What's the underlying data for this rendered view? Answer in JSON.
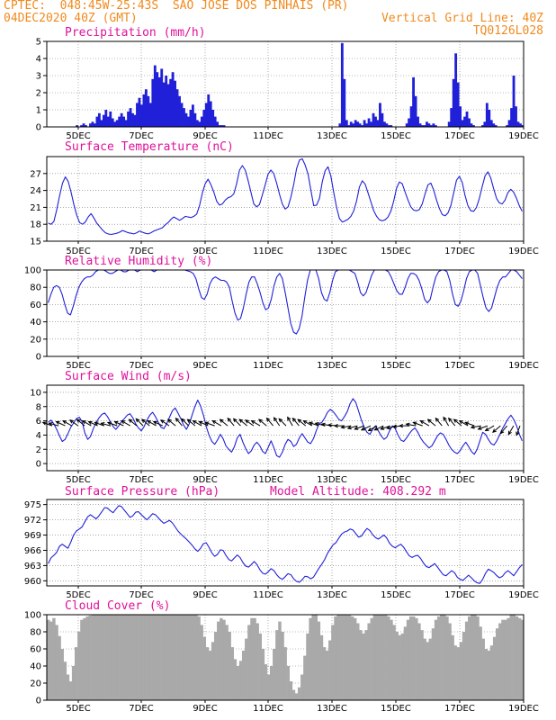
{
  "header": {
    "station": "CPTEC:  048:45W-25:43S  SAO JOSE DOS PINHAIS (PR)",
    "run": "04DEC2020 40Z (GMT)",
    "grid_note": "Vertical Grid Line: 40Z",
    "code": "TQ0126L028"
  },
  "colors": {
    "header": "#f08a1e",
    "title": "#e0129a",
    "series": "#2020d8",
    "cloud": "#a9a9a9"
  },
  "chart_data": [
    {
      "type": "bar",
      "title": "Precipitation (mm/h)",
      "x_ticks": [
        "5DEC",
        "7DEC",
        "9DEC",
        "11DEC",
        "13DEC",
        "15DEC",
        "17DEC",
        "19DEC"
      ],
      "ylim": [
        0,
        5
      ],
      "y_ticks": [
        0,
        1,
        2,
        3,
        4,
        5
      ],
      "grid": "dotted",
      "values": [
        0,
        0,
        0,
        0,
        0,
        0,
        0,
        0,
        0,
        0,
        0,
        0,
        0,
        0.1,
        0,
        0.1,
        0.2,
        0.1,
        0,
        0.2,
        0.3,
        0.2,
        0.6,
        0.8,
        0.4,
        0.7,
        1.0,
        0.6,
        0.9,
        0.5,
        0.3,
        0.4,
        0.6,
        0.8,
        0.6,
        0.4,
        0.9,
        1.1,
        0.8,
        0.7,
        1.4,
        1.7,
        1.3,
        1.9,
        2.2,
        1.8,
        1.4,
        2.8,
        3.6,
        3.2,
        2.9,
        3.4,
        2.6,
        3.0,
        2.5,
        2.8,
        3.2,
        2.7,
        2.2,
        1.8,
        1.4,
        1.1,
        0.8,
        0.6,
        1.0,
        1.3,
        0.8,
        0.4,
        0.3,
        0.6,
        1.0,
        1.4,
        1.9,
        1.5,
        1.0,
        0.6,
        0.3,
        0.1,
        0.1,
        0.1,
        0,
        0,
        0,
        0,
        0,
        0,
        0,
        0,
        0,
        0,
        0,
        0,
        0,
        0,
        0,
        0,
        0,
        0,
        0,
        0,
        0,
        0,
        0,
        0,
        0,
        0,
        0,
        0,
        0,
        0,
        0,
        0,
        0,
        0,
        0,
        0,
        0,
        0,
        0,
        0,
        0,
        0,
        0,
        0,
        0,
        0,
        0,
        0,
        0,
        0,
        0,
        0.2,
        4.9,
        2.8,
        0.4,
        0.1,
        0.3,
        0.2,
        0.4,
        0.3,
        0.2,
        0.1,
        0.4,
        0.2,
        0.5,
        0.3,
        0.8,
        0.6,
        0.4,
        1.4,
        0.8,
        0.3,
        0.2,
        0.1,
        0.1,
        0,
        0,
        0,
        0,
        0,
        0,
        0.2,
        0.5,
        1.2,
        2.9,
        1.8,
        0.6,
        0.2,
        0.1,
        0.1,
        0.3,
        0.2,
        0.1,
        0.2,
        0.1,
        0,
        0,
        0,
        0,
        0,
        0.3,
        1.1,
        2.8,
        4.3,
        2.6,
        1.2,
        0.4,
        0.6,
        0.9,
        0.5,
        0.2,
        0.1,
        0,
        0,
        0,
        0.1,
        0.3,
        1.4,
        1.0,
        0.4,
        0.2,
        0.1,
        0,
        0,
        0,
        0,
        0.1,
        0.4,
        1.1,
        3.0,
        1.2,
        0.3,
        0.2,
        0.1
      ]
    },
    {
      "type": "line",
      "title": "Surface Temperature (nC)",
      "x_ticks": [
        "5DEC",
        "7DEC",
        "9DEC",
        "11DEC",
        "13DEC",
        "15DEC",
        "17DEC",
        "19DEC"
      ],
      "ylim": [
        15,
        30
      ],
      "y_ticks": [
        15,
        18,
        21,
        24,
        27
      ],
      "grid": "dotted",
      "values": [
        18.2,
        18.0,
        18.5,
        20.6,
        23.1,
        25.3,
        26.4,
        25.6,
        23.7,
        21.5,
        19.6,
        18.3,
        18.0,
        18.4,
        19.3,
        19.9,
        19.1,
        18.2,
        17.6,
        17.0,
        16.5,
        16.3,
        16.2,
        16.3,
        16.4,
        16.6,
        16.9,
        16.7,
        16.5,
        16.4,
        16.3,
        16.5,
        16.8,
        16.6,
        16.4,
        16.3,
        16.5,
        16.8,
        17.0,
        17.2,
        17.4,
        17.9,
        18.3,
        18.9,
        19.3,
        19.0,
        18.7,
        19.0,
        19.4,
        19.3,
        19.2,
        19.4,
        19.8,
        21.3,
        23.6,
        25.2,
        26.0,
        25.0,
        23.7,
        22.1,
        21.4,
        21.6,
        22.3,
        22.7,
        22.9,
        23.4,
        25.2,
        27.6,
        28.4,
        27.6,
        25.8,
        23.7,
        21.6,
        21.1,
        21.5,
        23.2,
        25.0,
        26.9,
        27.6,
        27.0,
        25.3,
        23.3,
        21.6,
        20.7,
        21.1,
        22.8,
        25.1,
        27.9,
        29.4,
        29.6,
        28.5,
        26.9,
        24.0,
        21.3,
        21.4,
        22.6,
        25.6,
        27.5,
        28.2,
        26.5,
        23.6,
        21.0,
        19.0,
        18.4,
        18.6,
        18.9,
        19.4,
        20.4,
        22.1,
        24.6,
        25.7,
        25.1,
        23.6,
        22.0,
        20.4,
        19.4,
        18.8,
        18.6,
        18.8,
        19.3,
        20.3,
        22.1,
        24.4,
        25.5,
        25.2,
        23.7,
        22.3,
        21.1,
        20.5,
        20.4,
        20.6,
        21.6,
        23.4,
        25.0,
        25.3,
        24.1,
        22.3,
        20.8,
        19.7,
        19.5,
        20.0,
        21.3,
        23.5,
        25.8,
        26.5,
        25.4,
        23.1,
        21.3,
        20.4,
        20.3,
        21.0,
        22.6,
        24.7,
        26.6,
        27.3,
        26.2,
        24.3,
        22.6,
        21.8,
        21.6,
        22.3,
        23.6,
        24.2,
        23.7,
        22.6,
        21.3,
        20.3
      ]
    },
    {
      "type": "line",
      "title": "Relative Humidity (%)",
      "x_ticks": [
        "5DEC",
        "7DEC",
        "9DEC",
        "11DEC",
        "13DEC",
        "15DEC",
        "17DEC",
        "19DEC"
      ],
      "ylim": [
        0,
        100
      ],
      "y_ticks": [
        0,
        20,
        40,
        60,
        80,
        100
      ],
      "grid": "dotted",
      "values": [
        62,
        72,
        80,
        82,
        80,
        72,
        60,
        50,
        48,
        58,
        70,
        80,
        86,
        90,
        92,
        92,
        94,
        98,
        100,
        100,
        100,
        98,
        96,
        96,
        98,
        100,
        100,
        98,
        98,
        100,
        100,
        100,
        98,
        100,
        100,
        100,
        100,
        100,
        98,
        100,
        100,
        100,
        100,
        100,
        100,
        100,
        100,
        100,
        100,
        100,
        99,
        98,
        96,
        90,
        78,
        68,
        66,
        72,
        84,
        90,
        92,
        90,
        88,
        88,
        86,
        80,
        64,
        50,
        42,
        44,
        56,
        72,
        86,
        92,
        92,
        84,
        74,
        62,
        54,
        56,
        66,
        82,
        92,
        96,
        90,
        74,
        56,
        38,
        28,
        26,
        32,
        46,
        68,
        88,
        100,
        100,
        100,
        90,
        74,
        66,
        64,
        74,
        88,
        98,
        100,
        100,
        100,
        100,
        100,
        98,
        96,
        86,
        74,
        70,
        74,
        84,
        94,
        100,
        100,
        100,
        100,
        100,
        98,
        92,
        84,
        76,
        72,
        72,
        80,
        90,
        96,
        96,
        94,
        88,
        78,
        66,
        62,
        66,
        80,
        92,
        98,
        100,
        100,
        98,
        88,
        72,
        60,
        58,
        64,
        76,
        90,
        98,
        100,
        100,
        96,
        82,
        68,
        56,
        52,
        56,
        68,
        80,
        88,
        92,
        92,
        96,
        100,
        100,
        98,
        94,
        90
      ]
    },
    {
      "type": "line",
      "title": "Surface Wind (m/s)",
      "x_ticks": [
        "5DEC",
        "7DEC",
        "9DEC",
        "11DEC",
        "13DEC",
        "15DEC",
        "17DEC",
        "19DEC"
      ],
      "ylim": [
        -1,
        11
      ],
      "y_ticks": [
        0,
        2,
        4,
        6,
        8,
        10
      ],
      "grid": "dotted",
      "values": [
        5.8,
        6.1,
        5.6,
        4.8,
        3.9,
        3.1,
        3.4,
        4.2,
        5.1,
        5.7,
        6.3,
        6.5,
        5.9,
        4.3,
        3.4,
        3.8,
        4.9,
        5.8,
        6.4,
        6.9,
        7.1,
        6.6,
        5.9,
        5.2,
        4.8,
        5.3,
        5.9,
        6.3,
        6.8,
        7.0,
        6.4,
        5.6,
        5.0,
        4.6,
        5.2,
        6.1,
        6.8,
        7.2,
        6.6,
        5.8,
        5.1,
        4.9,
        5.6,
        6.5,
        7.4,
        7.8,
        7.1,
        6.3,
        5.4,
        4.8,
        5.6,
        6.8,
        8.0,
        8.9,
        8.1,
        6.8,
        5.2,
        4.0,
        3.1,
        2.7,
        3.3,
        4.1,
        3.5,
        2.5,
        2.0,
        1.6,
        2.4,
        3.6,
        4.1,
        3.0,
        2.1,
        1.4,
        1.8,
        2.6,
        3.0,
        2.5,
        1.7,
        1.4,
        2.3,
        3.2,
        2.2,
        1.1,
        0.9,
        1.6,
        2.7,
        3.4,
        3.1,
        2.4,
        2.7,
        3.6,
        4.2,
        3.6,
        3.0,
        2.8,
        3.5,
        4.6,
        5.6,
        5.8,
        6.4,
        7.2,
        7.6,
        7.3,
        6.8,
        6.2,
        6.0,
        6.6,
        7.3,
        8.4,
        9.1,
        8.6,
        7.4,
        6.1,
        5.1,
        4.4,
        4.1,
        4.8,
        5.3,
        4.6,
        3.9,
        3.4,
        3.7,
        4.6,
        5.3,
        4.9,
        4.0,
        3.3,
        3.1,
        3.6,
        4.2,
        4.7,
        5.0,
        4.4,
        3.6,
        3.0,
        2.6,
        2.2,
        2.5,
        3.2,
        3.9,
        4.3,
        4.1,
        3.4,
        2.6,
        2.0,
        1.6,
        1.4,
        1.8,
        2.5,
        3.0,
        2.4,
        1.7,
        1.3,
        2.0,
        3.2,
        4.4,
        4.1,
        3.4,
        2.8,
        2.6,
        3.2,
        4.0,
        4.9,
        5.6,
        6.3,
        6.8,
        6.2,
        5.3,
        4.1,
        3.2
      ],
      "arrows_deg": [
        20,
        15,
        25,
        30,
        35,
        40,
        30,
        25,
        20,
        15,
        20,
        25,
        30,
        40,
        45,
        40,
        30,
        25,
        35,
        40,
        50,
        45,
        40,
        30,
        25,
        20,
        30,
        40,
        50,
        45,
        40,
        35,
        30,
        40,
        50,
        55,
        45,
        60,
        50,
        40,
        30,
        20,
        15,
        10,
        5,
        0,
        -10,
        -15,
        -20,
        -25,
        -30,
        -25,
        -20,
        -15,
        -5,
        0,
        10,
        20,
        30,
        40,
        50,
        60,
        50,
        40,
        30,
        20,
        -10,
        -20,
        -30,
        -40,
        -50,
        -60,
        -70
      ]
    },
    {
      "type": "line",
      "title": "Surface Pressure (hPa)",
      "annotation": "Model Altitude: 408.292 m",
      "x_ticks": [
        "5DEC",
        "7DEC",
        "9DEC",
        "11DEC",
        "13DEC",
        "15DEC",
        "17DEC",
        "19DEC"
      ],
      "ylim": [
        959,
        976
      ],
      "y_ticks": [
        960,
        963,
        966,
        969,
        972,
        975
      ],
      "grid": "dotted",
      "values": [
        963.4,
        964.5,
        965.0,
        965.6,
        966.8,
        967.2,
        966.8,
        966.4,
        967.6,
        969.0,
        969.8,
        970.2,
        970.6,
        971.6,
        972.6,
        973.0,
        972.6,
        972.2,
        972.8,
        973.6,
        974.4,
        974.3,
        973.8,
        973.4,
        974.1,
        974.8,
        974.6,
        973.9,
        973.2,
        972.5,
        972.8,
        973.5,
        973.6,
        973.0,
        972.5,
        972.0,
        972.6,
        973.2,
        973.0,
        972.4,
        971.8,
        971.3,
        971.6,
        971.9,
        971.4,
        970.6,
        969.8,
        969.2,
        968.7,
        968.2,
        967.6,
        967.0,
        966.3,
        965.8,
        966.4,
        967.3,
        967.5,
        966.6,
        965.5,
        964.8,
        965.2,
        966.1,
        966.0,
        965.0,
        964.2,
        963.9,
        964.5,
        965.1,
        964.6,
        963.6,
        962.9,
        962.7,
        963.2,
        963.8,
        963.2,
        962.2,
        961.5,
        961.3,
        961.8,
        962.4,
        962.0,
        961.2,
        960.6,
        960.3,
        960.8,
        961.4,
        961.2,
        960.4,
        959.9,
        959.7,
        960.2,
        960.9,
        960.8,
        960.4,
        960.7,
        961.6,
        962.5,
        963.3,
        964.2,
        965.4,
        966.3,
        967.1,
        967.5,
        968.4,
        969.2,
        969.6,
        969.8,
        970.2,
        970.0,
        969.3,
        968.6,
        968.8,
        969.6,
        970.3,
        969.9,
        969.1,
        968.5,
        968.2,
        968.6,
        969.0,
        968.4,
        967.4,
        966.8,
        966.5,
        966.9,
        967.2,
        966.6,
        965.7,
        964.9,
        964.6,
        964.9,
        965.0,
        964.4,
        963.5,
        962.8,
        962.6,
        963.0,
        963.4,
        962.7,
        961.9,
        961.2,
        961.0,
        961.5,
        962.0,
        961.6,
        960.7,
        960.3,
        960.1,
        960.6,
        961.1,
        960.6,
        960.0,
        959.6,
        959.5,
        960.3,
        961.5,
        962.3,
        962.0,
        961.6,
        961.0,
        960.6,
        960.9,
        961.6,
        962.0,
        961.5,
        961.0,
        961.8,
        962.6,
        963.2
      ]
    },
    {
      "type": "bar",
      "title": "Cloud Cover (%)",
      "x_ticks": [
        "5DEC",
        "7DEC",
        "9DEC",
        "11DEC",
        "13DEC",
        "15DEC",
        "17DEC",
        "19DEC"
      ],
      "ylim": [
        0,
        100
      ],
      "y_ticks": [
        0,
        20,
        40,
        60,
        80,
        100
      ],
      "grid": "dotted",
      "values": [
        94,
        92,
        96,
        88,
        75,
        60,
        45,
        30,
        22,
        40,
        62,
        80,
        94,
        96,
        98,
        99,
        100,
        100,
        100,
        100,
        100,
        100,
        100,
        100,
        100,
        100,
        100,
        100,
        100,
        100,
        100,
        100,
        100,
        100,
        100,
        100,
        100,
        100,
        100,
        100,
        100,
        100,
        100,
        100,
        100,
        100,
        100,
        100,
        100,
        100,
        100,
        100,
        100,
        100,
        98,
        88,
        74,
        62,
        58,
        68,
        80,
        92,
        96,
        94,
        88,
        80,
        62,
        48,
        40,
        46,
        58,
        72,
        88,
        96,
        96,
        90,
        78,
        60,
        42,
        30,
        40,
        60,
        82,
        92,
        80,
        62,
        40,
        22,
        12,
        8,
        15,
        30,
        52,
        78,
        96,
        100,
        100,
        92,
        76,
        62,
        58,
        70,
        88,
        98,
        100,
        100,
        100,
        100,
        100,
        98,
        96,
        90,
        82,
        78,
        82,
        90,
        96,
        100,
        100,
        100,
        100,
        100,
        98,
        94,
        88,
        80,
        76,
        78,
        86,
        94,
        98,
        98,
        96,
        90,
        82,
        72,
        68,
        72,
        84,
        94,
        98,
        100,
        100,
        98,
        90,
        76,
        64,
        62,
        68,
        80,
        92,
        98,
        100,
        100,
        98,
        86,
        72,
        60,
        58,
        64,
        74,
        84,
        90,
        94,
        94,
        96,
        100,
        100,
        98,
        96,
        94
      ]
    }
  ]
}
